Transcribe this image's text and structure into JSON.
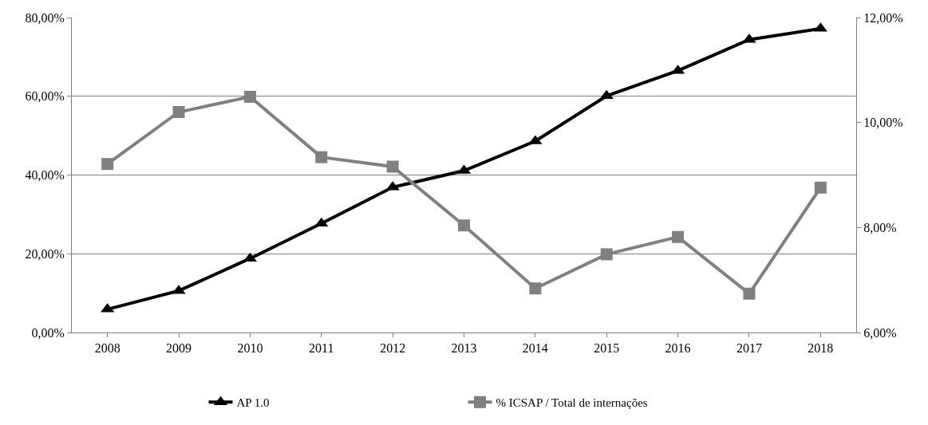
{
  "chart_data": {
    "type": "line",
    "categories": [
      "2008",
      "2009",
      "2010",
      "2011",
      "2012",
      "2013",
      "2014",
      "2015",
      "2016",
      "2017",
      "2018"
    ],
    "series": [
      {
        "name": "AP 1.0",
        "color": "#000000",
        "marker": "triangle",
        "values": [
          5.9,
          10.6,
          18.8,
          27.7,
          36.9,
          41.1,
          48.6,
          60.1,
          66.5,
          74.4,
          77.2
        ]
      },
      {
        "name": "% ICSAP / Total de internações",
        "color": "#808080",
        "marker": "square",
        "axis": "y2",
        "values": [
          9.21,
          10.2,
          10.49,
          9.34,
          9.16,
          8.04,
          6.84,
          7.49,
          7.82,
          6.74,
          8.76
        ]
      }
    ],
    "ylim": [
      0,
      80
    ],
    "yticks": [
      {
        "value": 0,
        "label": "0,00%"
      },
      {
        "value": 20,
        "label": "20,00%"
      },
      {
        "value": 40,
        "label": "40,00%"
      },
      {
        "value": 60,
        "label": "60,00%"
      },
      {
        "value": 80,
        "label": "80,00%"
      }
    ],
    "y2lim": [
      6,
      12
    ],
    "y2ticks": [
      {
        "value": 6,
        "label": "6,00%"
      },
      {
        "value": 8,
        "label": "8,00%"
      },
      {
        "value": 10,
        "label": "10,00%"
      },
      {
        "value": 12,
        "label": "12,00%"
      }
    ],
    "grid": "y",
    "legend": "bottom",
    "line_style": "solid"
  }
}
